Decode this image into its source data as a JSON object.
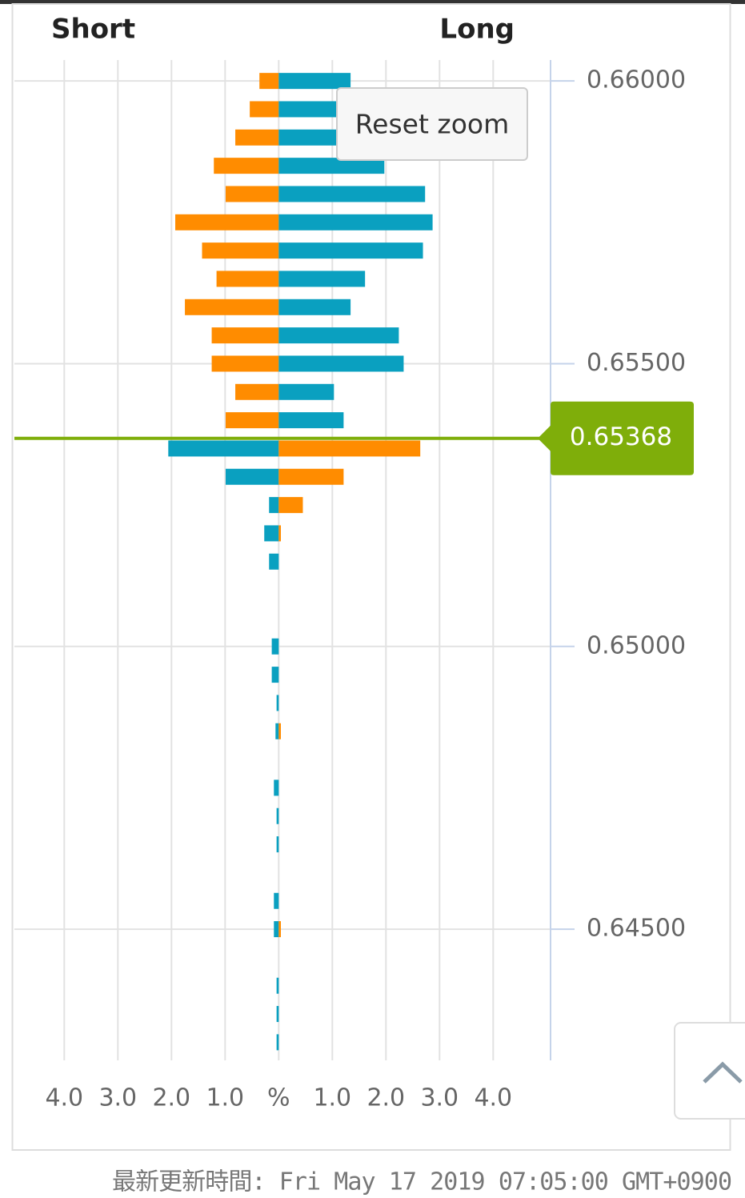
{
  "chart_data": {
    "type": "orderbook",
    "header_left": "Short",
    "header_right": "Long",
    "x": [
      0.66,
      0.6595,
      0.659,
      0.6585,
      0.658,
      0.6575,
      0.657,
      0.6565,
      0.656,
      0.6555,
      0.655,
      0.6545,
      0.654,
      0.6535,
      0.653,
      0.6525,
      0.652,
      0.6515,
      0.651,
      0.6505,
      0.65,
      0.6495,
      0.649,
      0.6485,
      0.648,
      0.6475,
      0.647,
      0.6465,
      0.646,
      0.6455,
      0.645,
      0.6445,
      0.644,
      0.6435,
      0.643
    ],
    "series": [
      {
        "name": "Short",
        "side": "left",
        "color": "#ff8c00",
        "color_below": "#0aa0c0",
        "values": [
          0.36,
          0.54,
          0.81,
          1.21,
          0.99,
          1.93,
          1.43,
          1.16,
          1.75,
          1.25,
          1.25,
          0.81,
          0.99,
          2.06,
          0.99,
          0.18,
          0.27,
          0.18,
          0,
          0,
          0.13,
          0.13,
          0.04,
          0.06,
          0,
          0.09,
          0.04,
          0.04,
          0,
          0.09,
          0.09,
          0,
          0.04,
          0.04,
          0.04
        ]
      },
      {
        "name": "Long",
        "side": "right",
        "color": "#0aa0c0",
        "color_below": "#ff8c00",
        "values": [
          1.34,
          1.1,
          1.1,
          1.97,
          2.73,
          2.87,
          2.69,
          1.61,
          1.34,
          2.24,
          2.33,
          1.03,
          1.21,
          2.64,
          1.21,
          0.45,
          0.04,
          0,
          0,
          0,
          0,
          0,
          0,
          0.04,
          0,
          0,
          0,
          0,
          0,
          0,
          0.04,
          0,
          0,
          0,
          0
        ]
      }
    ],
    "current_price": 0.65368,
    "current_color": "#7fae0a",
    "xlim": [
      -4.93,
      5.07
    ],
    "xticks": [
      {
        "value": -4,
        "label": "4.0"
      },
      {
        "value": -3,
        "label": "3.0"
      },
      {
        "value": -2,
        "label": "2.0"
      },
      {
        "value": -1,
        "label": "1.0"
      },
      {
        "value": 0,
        "label": "%"
      },
      {
        "value": 1,
        "label": "1.0"
      },
      {
        "value": 2,
        "label": "2.0"
      },
      {
        "value": 3,
        "label": "3.0"
      },
      {
        "value": 4,
        "label": "4.0"
      }
    ],
    "ylim": [
      0.64268,
      0.66037
    ],
    "yticks": [
      {
        "value": 0.645,
        "label": "0.64500"
      },
      {
        "value": 0.65,
        "label": "0.65000"
      },
      {
        "value": 0.655,
        "label": "0.65500"
      },
      {
        "value": 0.66,
        "label": "0.66000"
      }
    ],
    "grid": true
  },
  "reset_button": "Reset zoom",
  "footer": "最新更新時間: Fri May 17 2019 07:05:00 GMT+0900"
}
